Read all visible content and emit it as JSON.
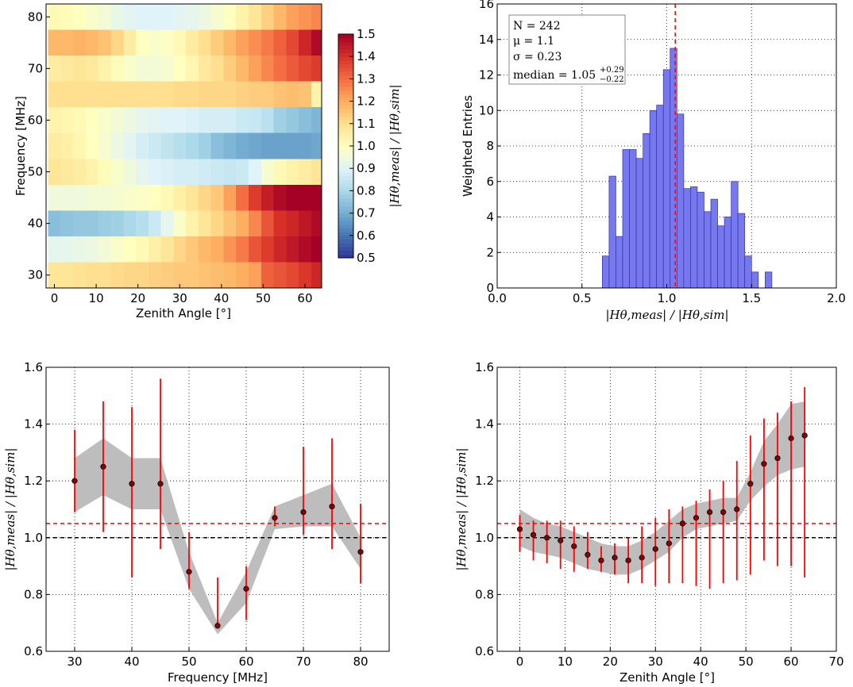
{
  "chart_data": [
    {
      "type": "heatmap",
      "xlabel": "Zenith Angle [°]",
      "ylabel": "Frequency [MHz]",
      "colorbar_label": "|Hθ,meas| / |Hθ,sim|",
      "xlim": [
        -2,
        64
      ],
      "ylim": [
        27.5,
        82.5
      ],
      "xticks": [
        0,
        10,
        20,
        30,
        40,
        50,
        60
      ],
      "yticks": [
        30,
        40,
        50,
        60,
        70,
        80
      ],
      "x_bin_width": 3,
      "x_bin_starts": [
        -1.5,
        1.5,
        4.5,
        7.5,
        10.5,
        13.5,
        16.5,
        19.5,
        22.5,
        25.5,
        28.5,
        31.5,
        34.5,
        37.5,
        40.5,
        43.5,
        46.5,
        49.5,
        52.5,
        55.5,
        58.5,
        61.5
      ],
      "y_bin_centers": [
        30,
        35,
        40,
        45,
        50,
        55,
        60,
        65,
        70,
        75,
        80
      ],
      "clim": [
        0.5,
        1.5
      ],
      "colorbar_ticks": [
        "0.5",
        "0.6",
        "0.7",
        "0.8",
        "0.9",
        "1.0",
        "1.1",
        "1.2",
        "1.3",
        "1.4",
        "1.5"
      ],
      "values": [
        [
          1.08,
          1.08,
          1.09,
          1.1,
          1.1,
          1.11,
          1.12,
          1.12,
          1.13,
          1.14,
          1.15,
          1.15,
          1.16,
          1.17,
          1.18,
          1.2,
          1.22,
          1.32,
          1.34,
          1.36,
          1.39,
          1.42
        ],
        [
          0.92,
          0.92,
          0.93,
          0.94,
          0.96,
          0.98,
          1.0,
          1.02,
          1.05,
          1.08,
          1.12,
          1.15,
          1.18,
          1.2,
          1.24,
          1.28,
          1.34,
          1.38,
          1.42,
          1.45,
          1.48,
          1.5
        ],
        [
          0.74,
          0.75,
          0.76,
          0.76,
          0.77,
          0.78,
          0.8,
          0.82,
          0.86,
          0.92,
          0.98,
          1.04,
          1.08,
          1.12,
          1.16,
          1.2,
          1.26,
          1.34,
          1.4,
          1.42,
          1.45,
          1.48
        ],
        [
          0.95,
          0.95,
          0.95,
          0.96,
          0.96,
          0.97,
          0.98,
          0.99,
          1.0,
          1.02,
          1.05,
          1.08,
          1.12,
          1.15,
          1.22,
          1.3,
          1.38,
          1.44,
          1.48,
          1.5,
          1.5,
          1.5
        ],
        [
          1.08,
          1.07,
          1.06,
          1.04,
          1.01,
          0.98,
          0.95,
          0.92,
          0.9,
          0.89,
          0.88,
          0.88,
          0.87,
          0.86,
          0.85,
          0.86,
          0.9,
          0.97,
          1.02,
          1.04,
          1.06,
          1.08
        ],
        [
          1.06,
          1.05,
          1.03,
          1.0,
          0.97,
          0.94,
          0.91,
          0.88,
          0.86,
          0.84,
          0.82,
          0.8,
          0.78,
          0.74,
          0.72,
          0.7,
          0.69,
          0.68,
          0.68,
          0.68,
          0.68,
          0.69
        ],
        [
          1.04,
          1.03,
          1.02,
          1.0,
          0.98,
          0.96,
          0.94,
          0.92,
          0.91,
          0.9,
          0.9,
          0.89,
          0.88,
          0.88,
          0.88,
          0.86,
          0.85,
          0.83,
          0.78,
          0.76,
          0.74,
          0.72
        ],
        [
          1.1,
          1.1,
          1.1,
          1.1,
          1.1,
          1.1,
          1.1,
          1.1,
          1.1,
          1.1,
          1.11,
          1.11,
          1.12,
          1.12,
          1.12,
          1.13,
          1.14,
          1.14,
          1.16,
          1.17,
          1.16,
          1.04
        ],
        [
          1.06,
          1.07,
          1.08,
          1.07,
          1.04,
          1.01,
          0.98,
          0.96,
          0.96,
          0.97,
          1.0,
          1.03,
          1.07,
          1.1,
          1.14,
          1.18,
          1.22,
          1.26,
          1.3,
          1.33,
          1.36,
          1.38
        ],
        [
          1.18,
          1.18,
          1.19,
          1.18,
          1.16,
          1.12,
          1.06,
          1.0,
          0.98,
          0.99,
          1.02,
          1.06,
          1.1,
          1.14,
          1.18,
          1.22,
          1.25,
          1.28,
          1.32,
          1.36,
          1.42,
          1.48
        ],
        [
          1.02,
          1.01,
          1.0,
          0.98,
          0.96,
          0.93,
          0.91,
          0.9,
          0.9,
          0.9,
          0.91,
          0.92,
          0.94,
          0.97,
          1.0,
          1.04,
          1.08,
          1.13,
          1.18,
          1.22,
          1.24,
          1.26
        ]
      ]
    },
    {
      "type": "bar",
      "histogram": true,
      "xlabel": "|Hθ,meas| / |Hθ,sim|",
      "ylabel": "Weighted Entries",
      "xlim": [
        0.0,
        2.0
      ],
      "ylim": [
        0,
        16
      ],
      "xticks": [
        "0.0",
        "0.5",
        "1.0",
        "1.5",
        "2.0"
      ],
      "yticks": [
        "0",
        "2",
        "4",
        "6",
        "8",
        "10",
        "12",
        "14",
        "16"
      ],
      "bin_width": 0.04,
      "bin_starts": [
        0.62,
        0.66,
        0.7,
        0.74,
        0.78,
        0.82,
        0.86,
        0.9,
        0.94,
        0.98,
        1.02,
        1.06,
        1.1,
        1.14,
        1.18,
        1.22,
        1.26,
        1.3,
        1.34,
        1.38,
        1.42,
        1.46,
        1.5,
        1.54,
        1.58,
        1.62,
        1.66
      ],
      "values": [
        1.8,
        6.3,
        2.9,
        7.8,
        7.8,
        7.3,
        8.7,
        10.0,
        10.3,
        12.3,
        13.5,
        9.8,
        5.6,
        5.7,
        5.4,
        4.3,
        5.0,
        3.5,
        4.0,
        6.0,
        4.2,
        1.8,
        0.9,
        0.0,
        0.9,
        0.0,
        0.0
      ],
      "grid": true,
      "vline": 1.05,
      "stats": {
        "N": "N = 242",
        "mu": "μ = 1.1",
        "sigma": "σ = 0.23",
        "median": "median = 1.05",
        "median_upper": "+0.29",
        "median_lower": "−0.22"
      }
    },
    {
      "type": "scatter",
      "xlabel": "Frequency [MHz]",
      "ylabel": "|Hθ,meas| / |Hθ,sim|",
      "xlim": [
        25,
        85
      ],
      "ylim": [
        0.6,
        1.6
      ],
      "xticks": [
        "30",
        "40",
        "50",
        "60",
        "70",
        "80"
      ],
      "yticks": [
        "0.6",
        "0.8",
        "1.0",
        "1.2",
        "1.4",
        "1.6"
      ],
      "x": [
        30,
        35,
        40,
        45,
        50,
        55,
        60,
        65,
        70,
        75,
        80
      ],
      "y": [
        1.2,
        1.25,
        1.19,
        1.19,
        0.88,
        0.69,
        0.82,
        1.07,
        1.09,
        1.11,
        0.95
      ],
      "err_low": [
        1.09,
        1.02,
        0.86,
        0.96,
        0.82,
        0.68,
        0.71,
        1.04,
        1.01,
        0.96,
        0.84
      ],
      "err_high": [
        1.38,
        1.48,
        1.46,
        1.56,
        1.02,
        0.86,
        0.9,
        1.11,
        1.32,
        1.35,
        1.12
      ],
      "band_low": [
        1.09,
        1.15,
        1.1,
        1.1,
        0.82,
        0.66,
        0.77,
        1.03,
        1.04,
        1.04,
        0.89
      ],
      "band_high": [
        1.28,
        1.35,
        1.28,
        1.28,
        0.95,
        0.7,
        0.88,
        1.11,
        1.15,
        1.19,
        1.0
      ],
      "hlines": [
        1.05,
        1.0
      ],
      "grid": true
    },
    {
      "type": "scatter",
      "xlabel": "Zenith Angle [°]",
      "ylabel": "|Hθ,meas| / |Hθ,sim|",
      "xlim": [
        -5,
        70
      ],
      "ylim": [
        0.6,
        1.6
      ],
      "xticks": [
        "0",
        "10",
        "20",
        "30",
        "40",
        "50",
        "60",
        "70"
      ],
      "yticks": [
        "0.6",
        "0.8",
        "1.0",
        "1.2",
        "1.4",
        "1.6"
      ],
      "x": [
        0,
        3,
        6,
        9,
        12,
        15,
        18,
        21,
        24,
        27,
        30,
        33,
        36,
        39,
        42,
        45,
        48,
        51,
        54,
        57,
        60,
        63
      ],
      "y": [
        1.03,
        1.01,
        1.0,
        0.99,
        0.97,
        0.94,
        0.92,
        0.93,
        0.92,
        0.93,
        0.96,
        0.98,
        1.05,
        1.07,
        1.09,
        1.09,
        1.1,
        1.19,
        1.26,
        1.28,
        1.35,
        1.36
      ],
      "err_low": [
        0.95,
        0.92,
        0.91,
        0.89,
        0.88,
        0.89,
        0.88,
        0.87,
        0.84,
        0.84,
        0.83,
        0.84,
        0.84,
        0.83,
        0.82,
        0.84,
        0.85,
        0.87,
        0.92,
        0.9,
        0.9,
        0.86
      ],
      "err_high": [
        1.08,
        1.06,
        1.06,
        1.06,
        1.04,
        1.02,
        0.97,
        0.98,
        1.0,
        1.04,
        1.07,
        1.1,
        1.11,
        1.13,
        1.17,
        1.2,
        1.27,
        1.36,
        1.42,
        1.44,
        1.48,
        1.53
      ],
      "band_low": [
        0.97,
        0.95,
        0.94,
        0.93,
        0.91,
        0.89,
        0.88,
        0.87,
        0.87,
        0.89,
        0.92,
        0.95,
        1.0,
        1.03,
        1.04,
        1.05,
        1.06,
        1.13,
        1.18,
        1.22,
        1.24,
        1.25
      ],
      "band_high": [
        1.1,
        1.07,
        1.05,
        1.04,
        1.02,
        1.0,
        0.98,
        0.97,
        0.97,
        0.99,
        1.02,
        1.06,
        1.1,
        1.12,
        1.13,
        1.14,
        1.14,
        1.23,
        1.34,
        1.4,
        1.47,
        1.48
      ],
      "hlines": [
        1.05,
        1.0
      ],
      "grid": true
    }
  ],
  "colors": {
    "hist_fill": "#7777ee",
    "hist_edge": "#3333aa",
    "errorbar": "#ff0000",
    "marker": "#8b0000",
    "band": "#bdbdbd",
    "median_line": "#ff0000",
    "reference_line": "#000000"
  }
}
